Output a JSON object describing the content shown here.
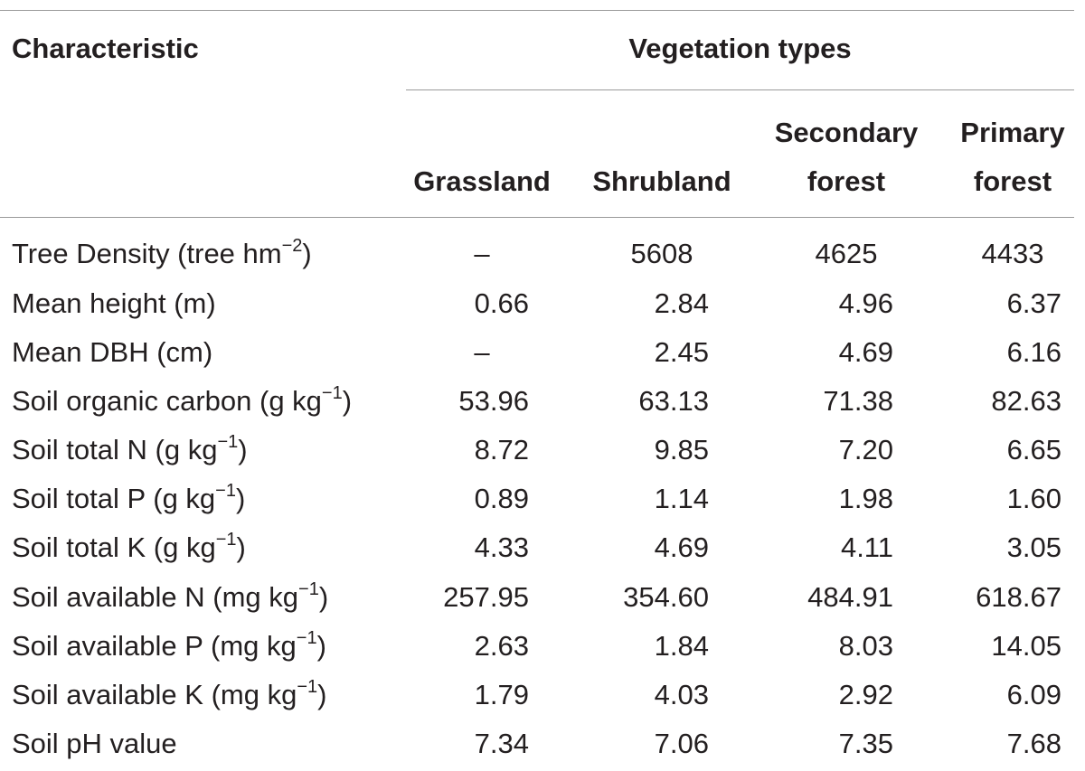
{
  "table": {
    "stub_header": "Characteristic",
    "group_header": "Vegetation types",
    "columns": [
      {
        "line1": "",
        "line2": "Grassland"
      },
      {
        "line1": "",
        "line2": "Shrubland"
      },
      {
        "line1": "Secondary",
        "line2": "forest"
      },
      {
        "line1": "Primary",
        "line2": "forest"
      }
    ],
    "rows": [
      {
        "label": "Tree Density (tree hm",
        "sup": "−2",
        "suffix": ")",
        "values": [
          "–",
          "5608",
          "4625",
          "4433"
        ]
      },
      {
        "label": "Mean height (m)",
        "sup": "",
        "suffix": "",
        "values": [
          "0.66",
          "2.84",
          "4.96",
          "6.37"
        ]
      },
      {
        "label": "Mean DBH (cm)",
        "sup": "",
        "suffix": "",
        "values": [
          "–",
          "2.45",
          "4.69",
          "6.16"
        ]
      },
      {
        "label": "Soil organic carbon (g kg",
        "sup": "−1",
        "suffix": ")",
        "values": [
          "53.96",
          "63.13",
          "71.38",
          "82.63"
        ]
      },
      {
        "label": "Soil total N (g kg",
        "sup": "−1",
        "suffix": ")",
        "values": [
          "8.72",
          "9.85",
          "7.20",
          "6.65"
        ]
      },
      {
        "label": "Soil total P (g kg",
        "sup": "−1",
        "suffix": ")",
        "values": [
          "0.89",
          "1.14",
          "1.98",
          "1.60"
        ]
      },
      {
        "label": "Soil total K (g kg",
        "sup": "−1",
        "suffix": ")",
        "values": [
          "4.33",
          "4.69",
          "4.11",
          "3.05"
        ]
      },
      {
        "label": "Soil available N (mg kg",
        "sup": "−1",
        "suffix": ")",
        "values": [
          "257.95",
          "354.60",
          "484.91",
          "618.67"
        ]
      },
      {
        "label": "Soil available P (mg kg",
        "sup": "−1",
        "suffix": ")",
        "values": [
          "2.63",
          "1.84",
          "8.03",
          "14.05"
        ]
      },
      {
        "label": "Soil available K (mg kg",
        "sup": "−1",
        "suffix": ")",
        "values": [
          "1.79",
          "4.03",
          "2.92",
          "6.09"
        ]
      },
      {
        "label": "Soil pH value",
        "sup": "",
        "suffix": "",
        "values": [
          "7.34",
          "7.06",
          "7.35",
          "7.68"
        ]
      }
    ]
  }
}
